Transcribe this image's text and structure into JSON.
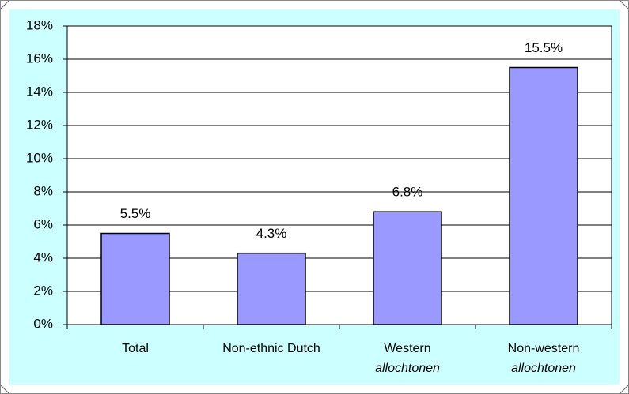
{
  "chart_data": {
    "type": "bar",
    "categories": [
      [
        "Total"
      ],
      [
        "Non-ethnic Dutch"
      ],
      [
        "Western",
        "allochtonen"
      ],
      [
        "Non-western",
        "allochtonen"
      ]
    ],
    "values": [
      5.5,
      4.3,
      6.8,
      15.5
    ],
    "value_labels": [
      "5.5%",
      "4.3%",
      "6.8%",
      "15.5%"
    ],
    "color": "#9999ff",
    "ylim": [
      0,
      18
    ],
    "yticks": [
      {
        "value": 0,
        "label": "0%"
      },
      {
        "value": 2,
        "label": "2%"
      },
      {
        "value": 4,
        "label": "4%"
      },
      {
        "value": 6,
        "label": "6%"
      },
      {
        "value": 8,
        "label": "8%"
      },
      {
        "value": 10,
        "label": "10%"
      },
      {
        "value": 12,
        "label": "12%"
      },
      {
        "value": 14,
        "label": "14%"
      },
      {
        "value": 16,
        "label": "16%"
      },
      {
        "value": 18,
        "label": "18%"
      }
    ],
    "grid": true
  }
}
